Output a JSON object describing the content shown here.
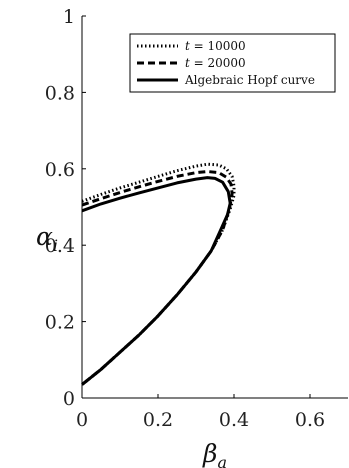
{
  "chart_data": {
    "type": "line",
    "xlabel": "β",
    "xlabel_sub": "a",
    "ylabel": "α",
    "ylabel_sub": "i",
    "xlim": [
      0,
      0.7
    ],
    "ylim": [
      0,
      1
    ],
    "xticks": [
      {
        "value": 0,
        "label": "0"
      },
      {
        "value": 0.2,
        "label": "0.2"
      },
      {
        "value": 0.4,
        "label": "0.4"
      },
      {
        "value": 0.6,
        "label": "0.6"
      }
    ],
    "yticks": [
      {
        "value": 0,
        "label": "0"
      },
      {
        "value": 0.2,
        "label": "0.2"
      },
      {
        "value": 0.4,
        "label": "0.4"
      },
      {
        "value": 0.6,
        "label": "0.6"
      },
      {
        "value": 0.8,
        "label": "0.8"
      },
      {
        "value": 1,
        "label": "1"
      }
    ],
    "grid": false,
    "legend_position": "top-right",
    "series": [
      {
        "name_prefix": "t",
        "name_value": " = 10000",
        "style": "dotted",
        "upper": [
          [
            0,
            0.515
          ],
          [
            0.05,
            0.533
          ],
          [
            0.1,
            0.55
          ],
          [
            0.15,
            0.565
          ],
          [
            0.2,
            0.58
          ],
          [
            0.25,
            0.595
          ],
          [
            0.3,
            0.607
          ],
          [
            0.33,
            0.612
          ],
          [
            0.36,
            0.61
          ],
          [
            0.38,
            0.6
          ],
          [
            0.395,
            0.58
          ],
          [
            0.4,
            0.555
          ],
          [
            0.4,
            0.53
          ]
        ],
        "lower": [
          [
            0,
            0.035
          ],
          [
            0.05,
            0.075
          ],
          [
            0.1,
            0.12
          ],
          [
            0.15,
            0.165
          ],
          [
            0.2,
            0.215
          ],
          [
            0.25,
            0.27
          ],
          [
            0.3,
            0.33
          ],
          [
            0.34,
            0.385
          ],
          [
            0.37,
            0.44
          ],
          [
            0.39,
            0.495
          ],
          [
            0.4,
            0.53
          ]
        ]
      },
      {
        "name_prefix": "t",
        "name_value": " = 20000",
        "style": "dashed",
        "upper": [
          [
            0,
            0.505
          ],
          [
            0.05,
            0.522
          ],
          [
            0.1,
            0.538
          ],
          [
            0.15,
            0.553
          ],
          [
            0.2,
            0.567
          ],
          [
            0.25,
            0.58
          ],
          [
            0.3,
            0.59
          ],
          [
            0.33,
            0.593
          ],
          [
            0.36,
            0.59
          ],
          [
            0.38,
            0.578
          ],
          [
            0.392,
            0.56
          ],
          [
            0.395,
            0.535
          ]
        ],
        "lower": [
          [
            0,
            0.035
          ],
          [
            0.05,
            0.075
          ],
          [
            0.1,
            0.12
          ],
          [
            0.15,
            0.165
          ],
          [
            0.2,
            0.215
          ],
          [
            0.25,
            0.27
          ],
          [
            0.3,
            0.33
          ],
          [
            0.34,
            0.385
          ],
          [
            0.37,
            0.44
          ],
          [
            0.388,
            0.495
          ],
          [
            0.395,
            0.535
          ]
        ]
      },
      {
        "name": "Algebraic Hopf curve",
        "style": "solid",
        "upper": [
          [
            0,
            0.49
          ],
          [
            0.05,
            0.508
          ],
          [
            0.1,
            0.523
          ],
          [
            0.15,
            0.537
          ],
          [
            0.2,
            0.55
          ],
          [
            0.25,
            0.563
          ],
          [
            0.3,
            0.573
          ],
          [
            0.33,
            0.577
          ],
          [
            0.35,
            0.575
          ],
          [
            0.37,
            0.565
          ],
          [
            0.385,
            0.54
          ],
          [
            0.39,
            0.51
          ]
        ],
        "lower": [
          [
            0,
            0.035
          ],
          [
            0.05,
            0.075
          ],
          [
            0.1,
            0.12
          ],
          [
            0.15,
            0.165
          ],
          [
            0.2,
            0.215
          ],
          [
            0.25,
            0.27
          ],
          [
            0.3,
            0.33
          ],
          [
            0.34,
            0.385
          ],
          [
            0.365,
            0.44
          ],
          [
            0.383,
            0.48
          ],
          [
            0.39,
            0.51
          ]
        ]
      }
    ]
  }
}
